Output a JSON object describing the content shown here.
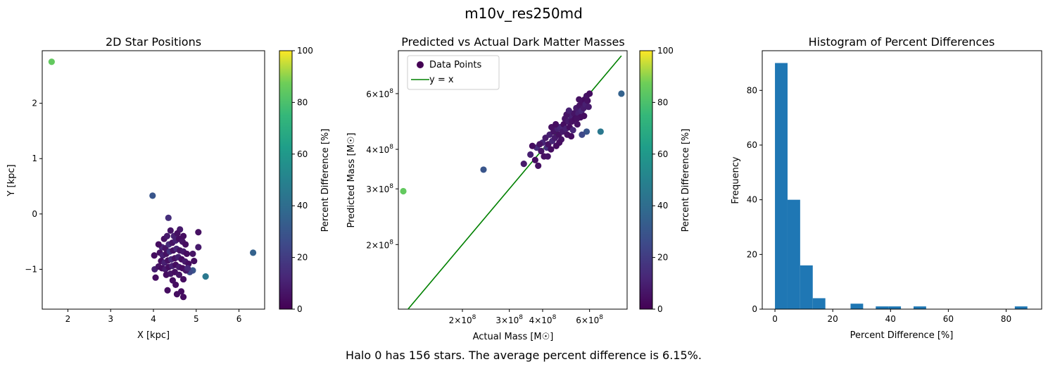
{
  "figure": {
    "suptitle": "m10v_res250md",
    "caption": "Halo 0 has 156 stars. The average percent difference is 6.15%."
  },
  "chart_data": [
    {
      "type": "scatter",
      "title": "2D Star Positions",
      "xlabel": "X [kpc]",
      "ylabel": "Y [kpc]",
      "xlim": [
        1.4,
        6.6
      ],
      "ylim": [
        -1.72,
        2.95
      ],
      "xticks": [
        "2",
        "3",
        "4",
        "5",
        "6"
      ],
      "xtick_values": [
        2,
        3,
        4,
        5,
        6
      ],
      "yticks": [
        "−1",
        "0",
        "1",
        "2"
      ],
      "ytick_values": [
        -1,
        0,
        1,
        2
      ],
      "colormap": "viridis",
      "points": [
        {
          "x": 1.62,
          "y": 2.75,
          "c": 85
        },
        {
          "x": 3.98,
          "y": 0.33,
          "c": 30
        },
        {
          "x": 6.33,
          "y": -0.7,
          "c": 35
        },
        {
          "x": 5.22,
          "y": -1.13,
          "c": 45
        },
        {
          "x": 4.92,
          "y": -1.02,
          "c": 30
        },
        {
          "x": 4.85,
          "y": -1.05,
          "c": 25
        },
        {
          "x": 4.35,
          "y": -0.07,
          "c": 15
        },
        {
          "x": 4.62,
          "y": -0.28,
          "c": 8
        },
        {
          "x": 5.05,
          "y": -0.33,
          "c": 5
        },
        {
          "x": 5.05,
          "y": -0.6,
          "c": 8
        },
        {
          "x": 4.03,
          "y": -1.0,
          "c": 10
        },
        {
          "x": 4.05,
          "y": -1.15,
          "c": 4
        },
        {
          "x": 4.33,
          "y": -1.38,
          "c": 4
        },
        {
          "x": 4.52,
          "y": -1.28,
          "c": 4
        },
        {
          "x": 4.55,
          "y": -1.45,
          "c": 4
        },
        {
          "x": 4.65,
          "y": -1.4,
          "c": 4
        },
        {
          "x": 4.7,
          "y": -1.5,
          "c": 4
        },
        {
          "x": 4.95,
          "y": -0.85,
          "c": 4
        },
        {
          "x": 4.92,
          "y": -0.72,
          "c": 6
        },
        {
          "x": 4.02,
          "y": -0.75,
          "c": 4
        },
        {
          "x": 4.4,
          "y": -0.3,
          "c": 6
        },
        {
          "x": 4.48,
          "y": -0.4,
          "c": 10
        },
        {
          "x": 4.25,
          "y": -0.45,
          "c": 5
        },
        {
          "x": 4.2,
          "y": -0.6,
          "c": 12
        },
        {
          "x": 4.28,
          "y": -0.62,
          "c": 6
        },
        {
          "x": 4.36,
          "y": -0.55,
          "c": 14
        },
        {
          "x": 4.44,
          "y": -0.52,
          "c": 6
        },
        {
          "x": 4.52,
          "y": -0.48,
          "c": 10
        },
        {
          "x": 4.6,
          "y": -0.45,
          "c": 4
        },
        {
          "x": 4.68,
          "y": -0.5,
          "c": 6
        },
        {
          "x": 4.75,
          "y": -0.55,
          "c": 4
        },
        {
          "x": 4.15,
          "y": -0.7,
          "c": 5
        },
        {
          "x": 4.22,
          "y": -0.75,
          "c": 10
        },
        {
          "x": 4.3,
          "y": -0.72,
          "c": 5
        },
        {
          "x": 4.38,
          "y": -0.68,
          "c": 16
        },
        {
          "x": 4.46,
          "y": -0.66,
          "c": 5
        },
        {
          "x": 4.54,
          "y": -0.63,
          "c": 12
        },
        {
          "x": 4.62,
          "y": -0.66,
          "c": 5
        },
        {
          "x": 4.7,
          "y": -0.68,
          "c": 8
        },
        {
          "x": 4.78,
          "y": -0.72,
          "c": 4
        },
        {
          "x": 4.18,
          "y": -0.85,
          "c": 4
        },
        {
          "x": 4.26,
          "y": -0.88,
          "c": 10
        },
        {
          "x": 4.34,
          "y": -0.84,
          "c": 5
        },
        {
          "x": 4.42,
          "y": -0.82,
          "c": 12
        },
        {
          "x": 4.5,
          "y": -0.8,
          "c": 5
        },
        {
          "x": 4.58,
          "y": -0.78,
          "c": 10
        },
        {
          "x": 4.66,
          "y": -0.82,
          "c": 4
        },
        {
          "x": 4.74,
          "y": -0.86,
          "c": 8
        },
        {
          "x": 4.82,
          "y": -0.9,
          "c": 4
        },
        {
          "x": 4.12,
          "y": -0.95,
          "c": 6
        },
        {
          "x": 4.2,
          "y": -0.98,
          "c": 4
        },
        {
          "x": 4.28,
          "y": -1.0,
          "c": 8
        },
        {
          "x": 4.36,
          "y": -0.96,
          "c": 4
        },
        {
          "x": 4.44,
          "y": -0.94,
          "c": 10
        },
        {
          "x": 4.52,
          "y": -0.92,
          "c": 4
        },
        {
          "x": 4.6,
          "y": -0.96,
          "c": 8
        },
        {
          "x": 4.68,
          "y": -0.98,
          "c": 4
        },
        {
          "x": 4.76,
          "y": -1.02,
          "c": 6
        },
        {
          "x": 4.3,
          "y": -1.1,
          "c": 4
        },
        {
          "x": 4.4,
          "y": -1.08,
          "c": 6
        },
        {
          "x": 4.5,
          "y": -1.05,
          "c": 4
        },
        {
          "x": 4.6,
          "y": -1.1,
          "c": 6
        },
        {
          "x": 4.7,
          "y": -1.18,
          "c": 4
        },
        {
          "x": 4.45,
          "y": -1.2,
          "c": 4
        },
        {
          "x": 4.8,
          "y": -0.98,
          "c": 12
        },
        {
          "x": 4.32,
          "y": -0.4,
          "c": 8
        },
        {
          "x": 4.56,
          "y": -0.35,
          "c": 5
        },
        {
          "x": 4.7,
          "y": -0.4,
          "c": 4
        },
        {
          "x": 4.12,
          "y": -0.55,
          "c": 4
        }
      ]
    },
    {
      "type": "scatter",
      "title": "Predicted vs Actual Dark Matter Masses",
      "xlabel": "Actual Mass [M☉]",
      "ylabel": "Predicted Mass [M☉]",
      "xscale": "log",
      "yscale": "log",
      "xlim": [
        115000000,
        830000000
      ],
      "ylim": [
        125000000,
        820000000
      ],
      "legend_position": "upper-left",
      "legend": [
        {
          "label": "Data Points",
          "marker": "circle"
        },
        {
          "label": "y = x",
          "marker": "line",
          "color": "#008000"
        }
      ],
      "xticks": [
        {
          "mant": "2",
          "exp": "8",
          "value": 200000000
        },
        {
          "mant": "3",
          "exp": "8",
          "value": 300000000
        },
        {
          "mant": "4",
          "exp": "8",
          "value": 400000000
        },
        {
          "mant": "6",
          "exp": "8",
          "value": 600000000
        }
      ],
      "yticks": [
        {
          "mant": "2",
          "exp": "8",
          "value": 200000000
        },
        {
          "mant": "3",
          "exp": "8",
          "value": 300000000
        },
        {
          "mant": "4",
          "exp": "8",
          "value": 400000000
        },
        {
          "mant": "6",
          "exp": "8",
          "value": 600000000
        }
      ],
      "identity_line": {
        "x": [
          120000000,
          790000000
        ],
        "y": [
          120000000,
          790000000
        ]
      },
      "points": [
        {
          "x": 120000000,
          "y": 295000000,
          "c": 85
        },
        {
          "x": 240000000,
          "y": 345000000,
          "c": 30
        },
        {
          "x": 790000000,
          "y": 600000000,
          "c": 35
        },
        {
          "x": 660000000,
          "y": 455000000,
          "c": 45
        },
        {
          "x": 585000000,
          "y": 455000000,
          "c": 30
        },
        {
          "x": 562000000,
          "y": 445000000,
          "c": 25
        },
        {
          "x": 340000000,
          "y": 360000000,
          "c": 8
        },
        {
          "x": 360000000,
          "y": 385000000,
          "c": 10
        },
        {
          "x": 375000000,
          "y": 370000000,
          "c": 4
        },
        {
          "x": 380000000,
          "y": 405000000,
          "c": 14
        },
        {
          "x": 385000000,
          "y": 355000000,
          "c": 5
        },
        {
          "x": 395000000,
          "y": 395000000,
          "c": 6
        },
        {
          "x": 400000000,
          "y": 420000000,
          "c": 12
        },
        {
          "x": 405000000,
          "y": 380000000,
          "c": 5
        },
        {
          "x": 410000000,
          "y": 435000000,
          "c": 8
        },
        {
          "x": 415000000,
          "y": 405000000,
          "c": 16
        },
        {
          "x": 420000000,
          "y": 415000000,
          "c": 5
        },
        {
          "x": 425000000,
          "y": 445000000,
          "c": 10
        },
        {
          "x": 430000000,
          "y": 400000000,
          "c": 4
        },
        {
          "x": 435000000,
          "y": 425000000,
          "c": 12
        },
        {
          "x": 440000000,
          "y": 455000000,
          "c": 6
        },
        {
          "x": 445000000,
          "y": 435000000,
          "c": 8
        },
        {
          "x": 450000000,
          "y": 410000000,
          "c": 4
        },
        {
          "x": 455000000,
          "y": 465000000,
          "c": 10
        },
        {
          "x": 460000000,
          "y": 445000000,
          "c": 5
        },
        {
          "x": 465000000,
          "y": 470000000,
          "c": 12
        },
        {
          "x": 470000000,
          "y": 430000000,
          "c": 6
        },
        {
          "x": 475000000,
          "y": 455000000,
          "c": 8
        },
        {
          "x": 480000000,
          "y": 480000000,
          "c": 4
        },
        {
          "x": 485000000,
          "y": 500000000,
          "c": 6
        },
        {
          "x": 490000000,
          "y": 465000000,
          "c": 10
        },
        {
          "x": 495000000,
          "y": 445000000,
          "c": 5
        },
        {
          "x": 500000000,
          "y": 490000000,
          "c": 8
        },
        {
          "x": 505000000,
          "y": 470000000,
          "c": 4
        },
        {
          "x": 510000000,
          "y": 510000000,
          "c": 10
        },
        {
          "x": 515000000,
          "y": 490000000,
          "c": 5
        },
        {
          "x": 520000000,
          "y": 460000000,
          "c": 12
        },
        {
          "x": 525000000,
          "y": 520000000,
          "c": 6
        },
        {
          "x": 530000000,
          "y": 500000000,
          "c": 4
        },
        {
          "x": 535000000,
          "y": 540000000,
          "c": 8
        },
        {
          "x": 540000000,
          "y": 480000000,
          "c": 5
        },
        {
          "x": 545000000,
          "y": 520000000,
          "c": 10
        },
        {
          "x": 550000000,
          "y": 550000000,
          "c": 6
        },
        {
          "x": 555000000,
          "y": 505000000,
          "c": 4
        },
        {
          "x": 560000000,
          "y": 530000000,
          "c": 12
        },
        {
          "x": 565000000,
          "y": 560000000,
          "c": 5
        },
        {
          "x": 570000000,
          "y": 540000000,
          "c": 8
        },
        {
          "x": 575000000,
          "y": 575000000,
          "c": 4
        },
        {
          "x": 580000000,
          "y": 555000000,
          "c": 10
        },
        {
          "x": 585000000,
          "y": 590000000,
          "c": 6
        },
        {
          "x": 590000000,
          "y": 570000000,
          "c": 5
        },
        {
          "x": 595000000,
          "y": 545000000,
          "c": 8
        },
        {
          "x": 600000000,
          "y": 600000000,
          "c": 4
        },
        {
          "x": 390000000,
          "y": 415000000,
          "c": 6
        },
        {
          "x": 432000000,
          "y": 470000000,
          "c": 5
        },
        {
          "x": 462000000,
          "y": 420000000,
          "c": 4
        },
        {
          "x": 492000000,
          "y": 515000000,
          "c": 6
        },
        {
          "x": 512000000,
          "y": 440000000,
          "c": 4
        },
        {
          "x": 548000000,
          "y": 575000000,
          "c": 5
        },
        {
          "x": 572000000,
          "y": 510000000,
          "c": 4
        },
        {
          "x": 418000000,
          "y": 380000000,
          "c": 6
        },
        {
          "x": 448000000,
          "y": 480000000,
          "c": 4
        },
        {
          "x": 502000000,
          "y": 530000000,
          "c": 10
        },
        {
          "x": 538000000,
          "y": 500000000,
          "c": 5
        },
        {
          "x": 366000000,
          "y": 410000000,
          "c": 4
        }
      ]
    },
    {
      "type": "bar",
      "title": "Histogram of Percent Differences",
      "xlabel": "Percent Difference [%]",
      "ylabel": "Frequency",
      "xlim": [
        -4.4,
        92.3
      ],
      "ylim": [
        0,
        94.5
      ],
      "bin_width": 4.36,
      "bins": [
        {
          "left": 0.0,
          "count": 90
        },
        {
          "left": 4.36,
          "count": 40
        },
        {
          "left": 8.72,
          "count": 16
        },
        {
          "left": 13.08,
          "count": 4
        },
        {
          "left": 26.16,
          "count": 2
        },
        {
          "left": 34.88,
          "count": 1
        },
        {
          "left": 39.24,
          "count": 1
        },
        {
          "left": 47.96,
          "count": 1
        },
        {
          "left": 83.0,
          "count": 1
        }
      ],
      "xticks": [
        "0",
        "20",
        "40",
        "60",
        "80"
      ],
      "xtick_values": [
        0,
        20,
        40,
        60,
        80
      ],
      "yticks": [
        "0",
        "20",
        "40",
        "60",
        "80"
      ],
      "ytick_values": [
        0,
        20,
        40,
        60,
        80
      ],
      "bar_color": "#1f77b4"
    }
  ],
  "colorbar": {
    "label": "Percent Difference [%]",
    "range": [
      0,
      100
    ],
    "ticks": [
      "0",
      "20",
      "40",
      "60",
      "80",
      "100"
    ],
    "tick_values": [
      0,
      20,
      40,
      60,
      80,
      100
    ]
  }
}
